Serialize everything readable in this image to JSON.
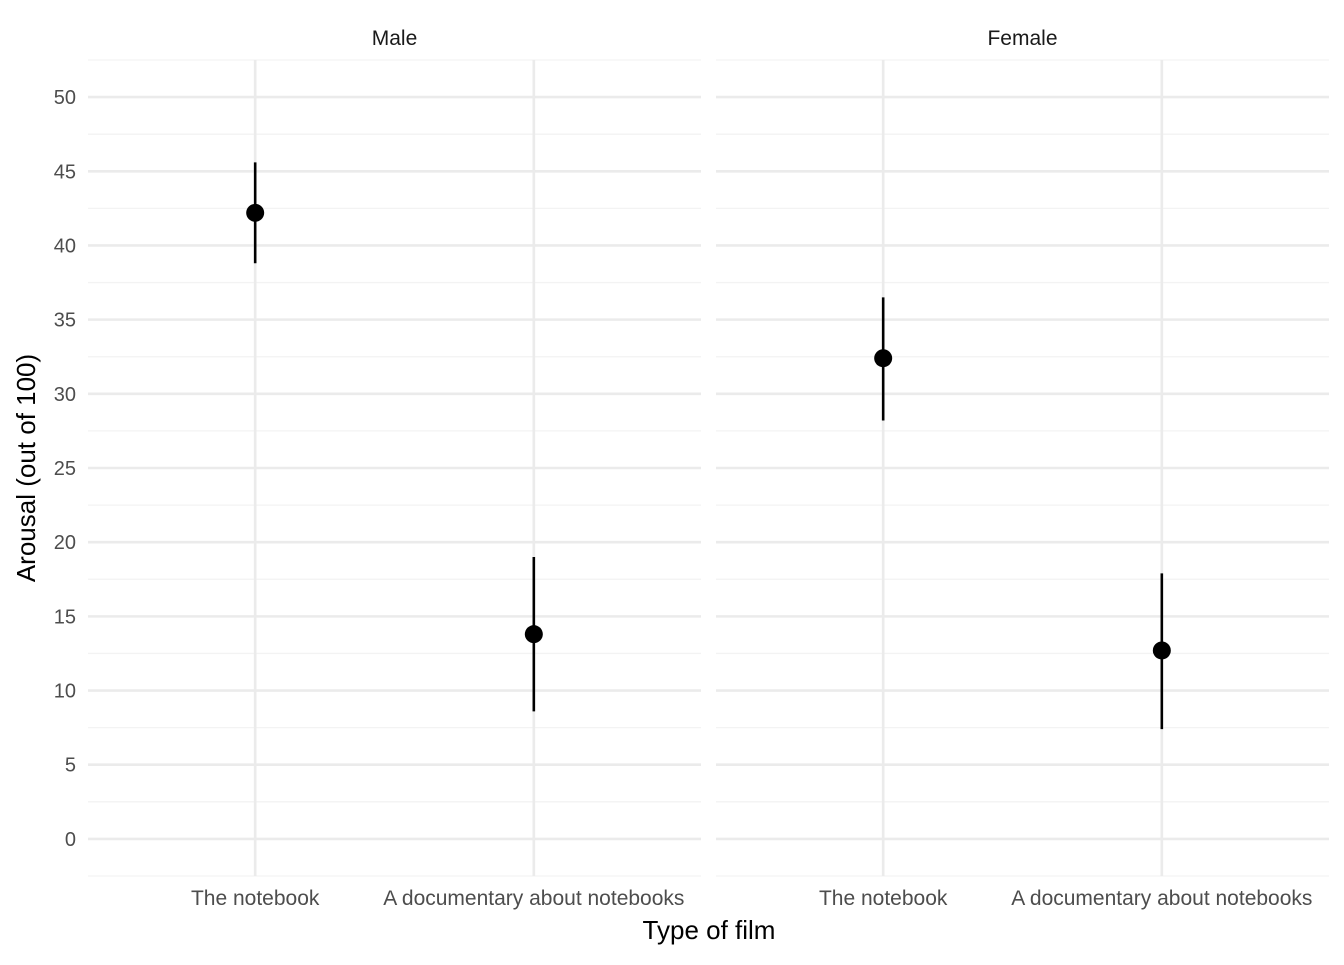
{
  "chart_data": {
    "type": "scatter",
    "xlabel": "Type of film",
    "ylabel": "Arousal (out of 100)",
    "categories": [
      "The notebook",
      "A documentary about notebooks"
    ],
    "y_ticks": [
      0,
      5,
      10,
      15,
      20,
      25,
      30,
      35,
      40,
      45,
      50
    ],
    "ylim": [
      -2.5,
      52.5
    ],
    "grid": true,
    "colors": {
      "point": "#000000",
      "errorbar": "#000000",
      "grid_major": "#ebebeb",
      "grid_minor": "#f3f3f3"
    },
    "panels": [
      {
        "facet": "Male",
        "series": [
          {
            "category": "The notebook",
            "y": 42.2,
            "lower": 38.8,
            "upper": 45.6
          },
          {
            "category": "A documentary about notebooks",
            "y": 13.8,
            "lower": 8.6,
            "upper": 19.0
          }
        ]
      },
      {
        "facet": "Female",
        "series": [
          {
            "category": "The notebook",
            "y": 32.4,
            "lower": 28.2,
            "upper": 36.5
          },
          {
            "category": "A documentary about notebooks",
            "y": 12.7,
            "lower": 7.4,
            "upper": 17.9
          }
        ]
      }
    ]
  }
}
